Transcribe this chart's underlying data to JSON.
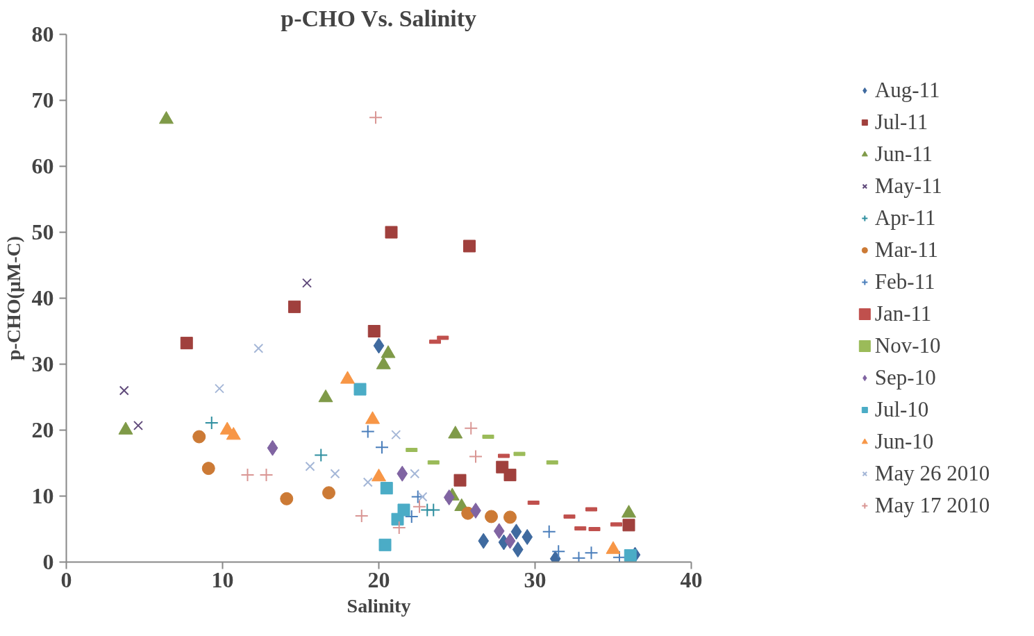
{
  "chart_data": {
    "type": "scatter",
    "title": "p-CHO Vs. Salinity",
    "xlabel": "Salinity",
    "ylabel": "p-CHO(μM-C)",
    "xlim": [
      0,
      40
    ],
    "xticks": [
      0,
      10,
      20,
      30,
      40
    ],
    "ylim": [
      0,
      80
    ],
    "yticks": [
      0,
      10,
      20,
      30,
      40,
      50,
      60,
      70,
      80
    ],
    "grid": false,
    "legend": "right",
    "series": [
      {
        "name": "Aug-11",
        "color": "#3f6a9f",
        "marker": "diamond",
        "x": [
          20.0,
          26.7,
          28.0,
          28.8,
          28.9,
          29.5,
          31.3,
          36.4
        ],
        "values": [
          32.8,
          3.2,
          3.0,
          4.6,
          1.9,
          3.8,
          0.5,
          1.1
        ]
      },
      {
        "name": "Jul-11",
        "color": "#a0403d",
        "marker": "square",
        "x": [
          7.7,
          14.6,
          19.7,
          20.8,
          25.8,
          25.2,
          27.9,
          28.4,
          36.0
        ],
        "values": [
          33.2,
          38.7,
          35.0,
          50.0,
          47.9,
          12.4,
          14.4,
          13.2,
          5.6
        ]
      },
      {
        "name": "Jun-11",
        "color": "#7f9a48",
        "marker": "triangle",
        "x": [
          6.4,
          3.8,
          16.6,
          20.3,
          20.6,
          24.9,
          24.7,
          25.3,
          36.0
        ],
        "values": [
          67.1,
          20.0,
          24.9,
          29.9,
          31.6,
          19.4,
          10.0,
          8.4,
          7.4
        ]
      },
      {
        "name": "May-11",
        "color": "#604a7b",
        "marker": "x",
        "x": [
          3.7,
          4.6,
          15.4
        ],
        "values": [
          26.0,
          20.7,
          42.3
        ]
      },
      {
        "name": "Apr-11",
        "color": "#2f8fa0",
        "marker": "cross",
        "x": [
          9.3,
          16.3,
          23.1,
          23.5
        ],
        "values": [
          21.1,
          16.2,
          7.9,
          7.9
        ]
      },
      {
        "name": "Mar-11",
        "color": "#cc7a35",
        "marker": "circle",
        "x": [
          8.5,
          9.1,
          14.1,
          16.8,
          25.7,
          27.2,
          28.4
        ],
        "values": [
          19.0,
          14.2,
          9.6,
          10.5,
          7.4,
          6.9,
          6.8
        ]
      },
      {
        "name": "Feb-11",
        "color": "#4a7ebb",
        "marker": "cross",
        "x": [
          19.3,
          20.2,
          22.5,
          22.1,
          30.9,
          31.5,
          32.8,
          33.6,
          35.4
        ],
        "values": [
          19.8,
          17.4,
          9.9,
          6.9,
          4.6,
          1.6,
          0.6,
          1.4,
          0.7
        ]
      },
      {
        "name": "Jan-11",
        "color": "#c0504d",
        "x": [
          23.6,
          24.1,
          28.0,
          29.9,
          32.2,
          32.9,
          33.6,
          33.8,
          35.2
        ],
        "values": [
          33.4,
          34.0,
          16.1,
          9.0,
          6.9,
          5.1,
          8.0,
          5.0,
          5.7
        ]
      },
      {
        "name": "Nov-10",
        "color": "#9bbb59",
        "x": [
          22.1,
          23.5,
          27.0,
          29.0,
          31.1
        ],
        "values": [
          17.0,
          15.1,
          19.0,
          16.4,
          15.1
        ]
      },
      {
        "name": "Sep-10",
        "color": "#8064a2",
        "marker": "diamond",
        "x": [
          13.2,
          21.5,
          24.5,
          26.2,
          27.7,
          28.4
        ],
        "values": [
          17.3,
          13.4,
          9.8,
          7.8,
          4.7,
          3.2
        ]
      },
      {
        "name": "Jul-10",
        "color": "#4bacc6",
        "marker": "square",
        "x": [
          18.8,
          20.5,
          20.4,
          21.2,
          21.6,
          36.1
        ],
        "values": [
          26.2,
          11.2,
          2.6,
          6.5,
          7.9,
          1.0
        ]
      },
      {
        "name": "Jun-10",
        "color": "#f79646",
        "marker": "triangle",
        "x": [
          10.3,
          10.7,
          18.0,
          19.6,
          20.0,
          35.0
        ],
        "values": [
          20.0,
          19.2,
          27.7,
          21.6,
          12.9,
          1.9
        ]
      },
      {
        "name": "May 26 2010",
        "color": "#a5b7d7",
        "marker": "x",
        "x": [
          12.3,
          9.8,
          15.6,
          17.2,
          19.3,
          21.1,
          22.3,
          22.8
        ],
        "values": [
          32.4,
          26.3,
          14.5,
          13.4,
          12.1,
          19.3,
          13.4,
          9.9
        ]
      },
      {
        "name": "May 17 2010",
        "color": "#d99694",
        "marker": "cross",
        "x": [
          19.8,
          11.6,
          12.8,
          18.9,
          21.3,
          22.6,
          25.9,
          26.2
        ],
        "values": [
          67.4,
          13.2,
          13.2,
          7.0,
          5.2,
          8.4,
          20.3,
          16.0
        ]
      }
    ]
  }
}
